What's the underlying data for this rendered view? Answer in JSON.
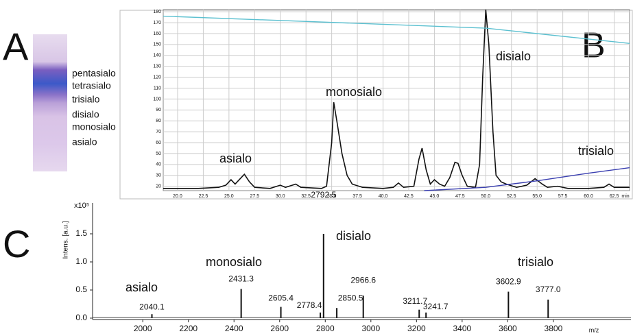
{
  "panel_labels": [
    "A",
    "B",
    "C"
  ],
  "gel": {
    "labels": [
      "pentasialo",
      "tetrasialo",
      "trisialo",
      "disialo",
      "monosialo",
      "asialo"
    ]
  },
  "chart_data": [
    {
      "type": "line",
      "x_label": "min",
      "xlim": [
        18.6,
        64
      ],
      "ylim": [
        16,
        182
      ],
      "grid": true,
      "xticks": [
        {
          "value": 20,
          "label": "20.0"
        },
        {
          "value": 22.5,
          "label": "22.5"
        },
        {
          "value": 25,
          "label": "25.0"
        },
        {
          "value": 27.5,
          "label": "27.5"
        },
        {
          "value": 30,
          "label": "30.0"
        },
        {
          "value": 32.5,
          "label": "32.5"
        },
        {
          "value": 35,
          "label": "35.0"
        },
        {
          "value": 37.5,
          "label": "37.5"
        },
        {
          "value": 40,
          "label": "40.0"
        },
        {
          "value": 42.5,
          "label": "42.5"
        },
        {
          "value": 45,
          "label": "45.0"
        },
        {
          "value": 47.5,
          "label": "47.5"
        },
        {
          "value": 50,
          "label": "50.0"
        },
        {
          "value": 52.5,
          "label": "52.5"
        },
        {
          "value": 55,
          "label": "55.0"
        },
        {
          "value": 57.5,
          "label": "57.5"
        },
        {
          "value": 60,
          "label": "60.0"
        },
        {
          "value": 62.5,
          "label": "62.5"
        }
      ],
      "yticks": [
        20,
        30,
        40,
        50,
        60,
        70,
        80,
        90,
        100,
        110,
        120,
        130,
        140,
        150,
        160,
        170,
        180
      ],
      "annotations": [
        "asialo",
        "monosialo",
        "disialo",
        "trisialo"
      ],
      "series": [
        {
          "color": "#111111",
          "x": [
            18.6,
            20,
            22,
            24,
            24.7,
            25.2,
            25.6,
            26,
            26.5,
            27,
            27.5,
            29,
            30,
            30.5,
            31.5,
            32,
            34,
            34.5,
            35,
            35.2,
            35.5,
            36,
            36.5,
            37,
            38,
            40,
            41,
            41.5,
            42,
            43,
            43.5,
            43.8,
            44.2,
            44.6,
            45,
            45.5,
            46,
            46.5,
            47,
            47.3,
            47.7,
            48.2,
            49,
            49.4,
            49.7,
            50,
            50.3,
            50.7,
            51,
            51.5,
            52,
            53,
            54,
            54.8,
            55.5,
            56,
            57,
            58,
            60,
            61.5,
            62,
            62.5,
            64
          ],
          "values": [
            18,
            18,
            18,
            19,
            21,
            26,
            22,
            26,
            31,
            24,
            19,
            18,
            21,
            19,
            22,
            19,
            18,
            20,
            60,
            97,
            80,
            50,
            30,
            22,
            19,
            18,
            19,
            23,
            19,
            20,
            45,
            55,
            35,
            22,
            26,
            22,
            20,
            28,
            42,
            41,
            30,
            20,
            19,
            40,
            120,
            182,
            150,
            70,
            30,
            24,
            22,
            19,
            21,
            27,
            22,
            19,
            20,
            18,
            18,
            19,
            22,
            19,
            19
          ]
        },
        {
          "color": "#5bc0d0",
          "x": [
            18.6,
            50,
            64
          ],
          "values": [
            176,
            165,
            151
          ]
        },
        {
          "color": "#3a3fb0",
          "x": [
            44,
            50,
            55,
            60,
            64
          ],
          "values": [
            16,
            19,
            25,
            32,
            37
          ]
        }
      ]
    },
    {
      "type": "spectrum",
      "y_label": "Intens. [a.u.]",
      "y_scale_label": "x10⁵",
      "x_label": "m/z",
      "xlim": [
        1780,
        4140
      ],
      "ylim": [
        -0.025,
        2.0
      ],
      "xticks": [
        2000,
        2200,
        2400,
        2600,
        2800,
        3000,
        3200,
        3400,
        3600,
        3800
      ],
      "yticks": [
        {
          "value": 0,
          "label": "0.0"
        },
        {
          "value": 0.5,
          "label": "0.5"
        },
        {
          "value": 1,
          "label": "1.0"
        },
        {
          "value": 1.5,
          "label": "1.5"
        }
      ],
      "annotations": [
        "asialo",
        "monosialo",
        "disialo",
        "trisialo"
      ],
      "color": "#111111",
      "x": [
        2040.1,
        2431.3,
        2605.4,
        2778.4,
        2792.5,
        2850.5,
        2966.6,
        3211.7,
        3241.7,
        3602.9,
        3777
      ],
      "x_labels": [
        "2040.1",
        "2431.3",
        "2605.4",
        "2778.4",
        "2792.5",
        "2850.5",
        "2966.6",
        "3211.7",
        "3241.7",
        "3602.9",
        "3777.0"
      ],
      "values": [
        0.07,
        0.52,
        0.2,
        0.1,
        1.5,
        0.18,
        0.4,
        0.15,
        0.1,
        0.47,
        0.33
      ]
    }
  ]
}
